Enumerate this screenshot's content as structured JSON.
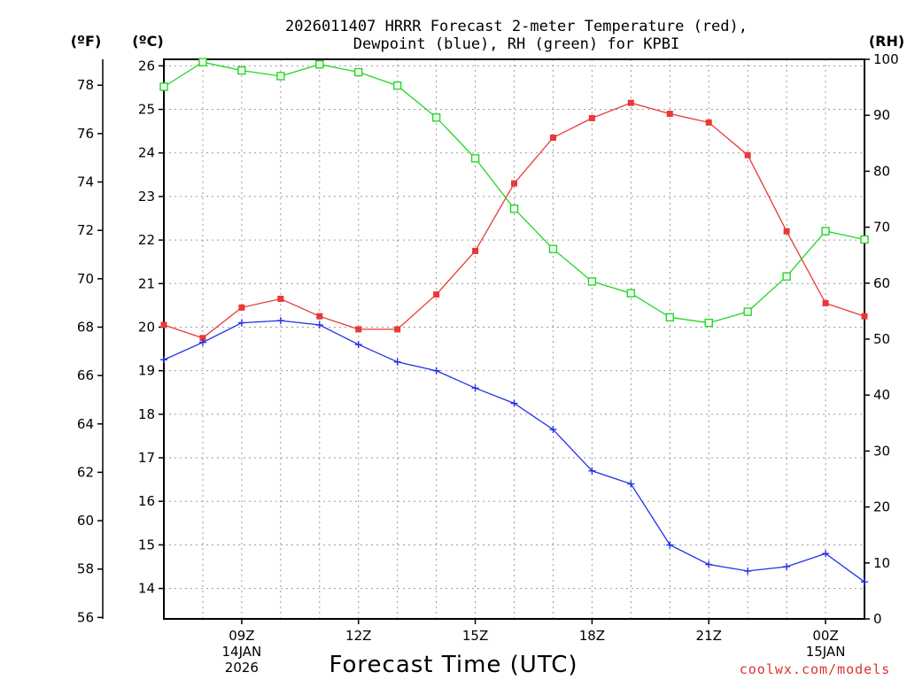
{
  "chart_data": {
    "type": "line",
    "title_line1": "2026011407 HRRR Forecast 2-meter Temperature (red),",
    "title_line2": "Dewpoint (blue), RH (green) for KPBI",
    "xlabel": "Forecast Time (UTC)",
    "credit": "coolwx.com/models",
    "units": {
      "fahrenheit": "(ºF)",
      "celsius": "(ºC)",
      "rh": "(RH)"
    },
    "x_hours": [
      7,
      8,
      9,
      10,
      11,
      12,
      13,
      14,
      15,
      16,
      17,
      18,
      19,
      20,
      21,
      22,
      23,
      24,
      25
    ],
    "x_range": [
      7,
      25
    ],
    "x_ticks": [
      {
        "hour": 9,
        "label": "09Z",
        "date": "14JAN",
        "year": "2026"
      },
      {
        "hour": 12,
        "label": "12Z",
        "date": "",
        "year": ""
      },
      {
        "hour": 15,
        "label": "15Z",
        "date": "",
        "year": ""
      },
      {
        "hour": 18,
        "label": "18Z",
        "date": "",
        "year": ""
      },
      {
        "hour": 21,
        "label": "21Z",
        "date": "",
        "year": ""
      },
      {
        "hour": 24,
        "label": "00Z",
        "date": "15JAN",
        "year": ""
      }
    ],
    "y_left_celsius": {
      "range": [
        13.3,
        26.15
      ],
      "ticks": [
        14,
        15,
        16,
        17,
        18,
        19,
        20,
        21,
        22,
        23,
        24,
        25,
        26
      ]
    },
    "y_left_fahrenheit": {
      "ticks": [
        56,
        58,
        60,
        62,
        64,
        66,
        68,
        70,
        72,
        74,
        76,
        78
      ]
    },
    "y_right_rh": {
      "range": [
        0,
        100
      ],
      "ticks": [
        0,
        10,
        20,
        30,
        40,
        50,
        60,
        70,
        80,
        90,
        100
      ]
    },
    "series": [
      {
        "name": "Temperature",
        "axis": "celsius",
        "color": "#e83838",
        "marker": "filled-square",
        "values": [
          20.05,
          19.75,
          20.45,
          20.65,
          20.25,
          19.95,
          19.95,
          20.75,
          21.75,
          23.3,
          24.35,
          24.8,
          25.15,
          24.9,
          24.7,
          23.95,
          22.2,
          20.55,
          20.25
        ]
      },
      {
        "name": "Dewpoint",
        "axis": "celsius",
        "color": "#2030e8",
        "marker": "plus",
        "values": [
          19.25,
          19.65,
          20.1,
          20.15,
          20.05,
          19.6,
          19.2,
          19.0,
          18.6,
          18.25,
          17.65,
          16.7,
          16.4,
          15.0,
          14.55,
          14.4,
          14.5,
          14.8,
          14.15
        ]
      },
      {
        "name": "RH",
        "axis": "rh",
        "color": "#20d820",
        "marker": "open-square",
        "values": [
          95.1,
          99.5,
          98.0,
          97.0,
          99.1,
          97.7,
          95.3,
          89.6,
          82.3,
          73.3,
          66.1,
          60.3,
          58.2,
          53.9,
          52.9,
          54.9,
          61.2,
          69.3,
          67.8
        ]
      }
    ],
    "grid": true
  }
}
